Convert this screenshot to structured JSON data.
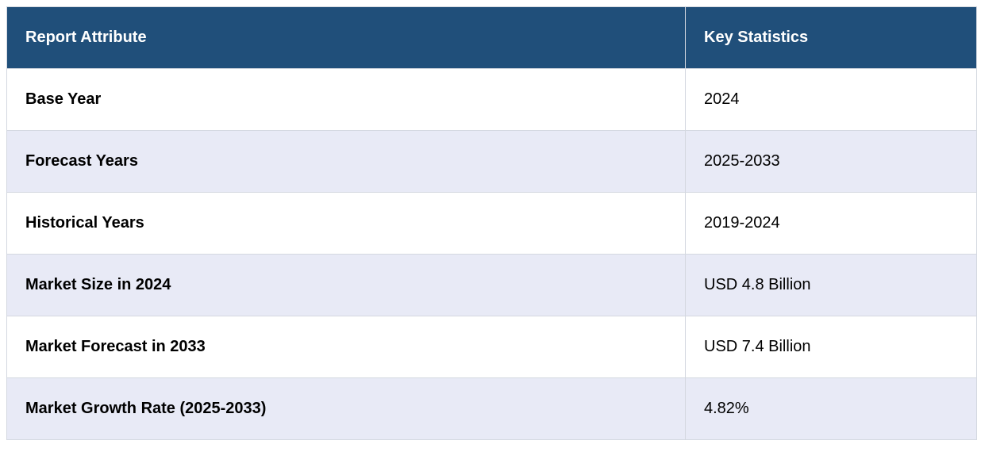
{
  "table": {
    "headers": [
      "Report Attribute",
      "Key Statistics"
    ],
    "rows": [
      {
        "attribute": "Base Year",
        "value": "2024"
      },
      {
        "attribute": "Forecast Years",
        "value": "2025-2033"
      },
      {
        "attribute": "Historical Years",
        "value": "2019-2024"
      },
      {
        "attribute": "Market Size in 2024",
        "value": "USD 4.8 Billion"
      },
      {
        "attribute": "Market Forecast in 2033",
        "value": "USD 7.4 Billion"
      },
      {
        "attribute": "Market Growth Rate (2025-2033)",
        "value": "4.82%"
      }
    ],
    "colors": {
      "header_bg": "#204f7a",
      "header_text": "#ffffff",
      "row_alt_bg": "#e8eaf6",
      "border": "#d4d8e0"
    }
  }
}
